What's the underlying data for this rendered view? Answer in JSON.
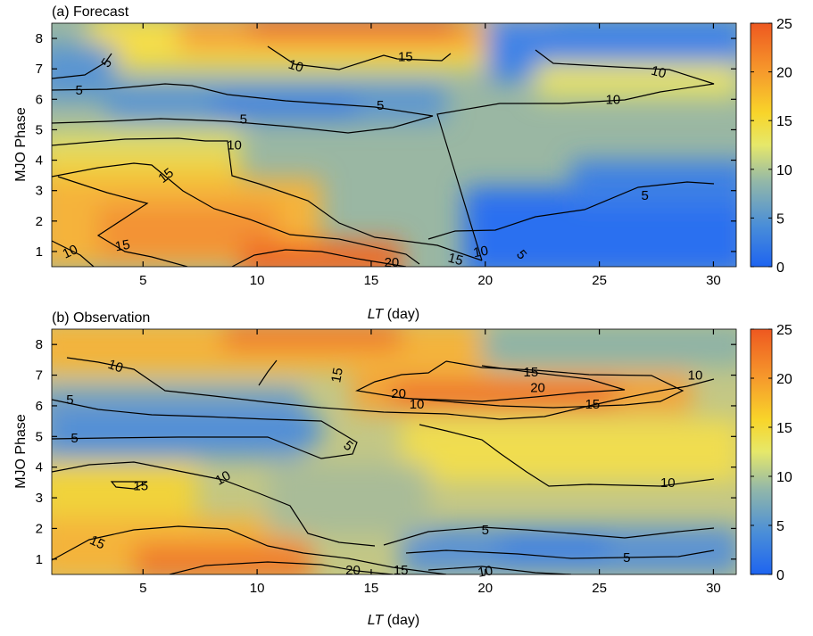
{
  "chart_data": [
    {
      "type": "heatmap",
      "panel": "a",
      "title": "(a) Forecast",
      "xlabel": "LT (day)",
      "xlabel_italic": "LT",
      "xlabel_rest": " (day)",
      "ylabel": "MJO Phase",
      "xlim": [
        1,
        31
      ],
      "ylim": [
        0.5,
        8.5
      ],
      "xticks": [
        5,
        10,
        15,
        20,
        25,
        30
      ],
      "yticks": [
        1,
        2,
        3,
        4,
        5,
        6,
        7,
        8
      ],
      "colorbar": {
        "min": 0,
        "max": 25,
        "ticks": [
          0,
          5,
          10,
          15,
          20,
          25
        ],
        "colors": [
          "#1e64f0",
          "#4a8ed8",
          "#93b8a8",
          "#e6e86a",
          "#f8d52a",
          "#f69a2c",
          "#ee5820"
        ]
      },
      "contour_levels": [
        5,
        10,
        15,
        20
      ],
      "field_description_rows": [
        {
          "phase": 8,
          "values_by_lt": [
            [
              1,
              9
            ],
            [
              5,
              12
            ],
            [
              10,
              18
            ],
            [
              12,
              23
            ],
            [
              15,
              22
            ],
            [
              18,
              15
            ],
            [
              20,
              10
            ],
            [
              25,
              6
            ],
            [
              30,
              4
            ]
          ]
        },
        {
          "phase": 7,
          "values_by_lt": [
            [
              1,
              6
            ],
            [
              5,
              7
            ],
            [
              10,
              11
            ],
            [
              15,
              14
            ],
            [
              20,
              10
            ],
            [
              25,
              11
            ],
            [
              30,
              11
            ]
          ]
        },
        {
          "phase": 6,
          "values_by_lt": [
            [
              1,
              5
            ],
            [
              5,
              6
            ],
            [
              10,
              7
            ],
            [
              15,
              6
            ],
            [
              20,
              8
            ],
            [
              25,
              9
            ],
            [
              30,
              10
            ]
          ]
        },
        {
          "phase": 5,
          "values_by_lt": [
            [
              1,
              5
            ],
            [
              5,
              4
            ],
            [
              10,
              4
            ],
            [
              15,
              6
            ],
            [
              20,
              8
            ],
            [
              25,
              7
            ],
            [
              30,
              6
            ]
          ]
        },
        {
          "phase": 4,
          "values_by_lt": [
            [
              1,
              11
            ],
            [
              5,
              12
            ],
            [
              10,
              9
            ],
            [
              15,
              9
            ],
            [
              20,
              8
            ],
            [
              25,
              7
            ],
            [
              30,
              6
            ]
          ]
        },
        {
          "phase": 3,
          "values_by_lt": [
            [
              1,
              14
            ],
            [
              5,
              16
            ],
            [
              10,
              12
            ],
            [
              15,
              9
            ],
            [
              20,
              8
            ],
            [
              25,
              6
            ],
            [
              30,
              4
            ]
          ]
        },
        {
          "phase": 2,
          "values_by_lt": [
            [
              1,
              15
            ],
            [
              5,
              17
            ],
            [
              10,
              15
            ],
            [
              15,
              11
            ],
            [
              20,
              6
            ],
            [
              25,
              3
            ],
            [
              30,
              3
            ]
          ]
        },
        {
          "phase": 1,
          "values_by_lt": [
            [
              1,
              11
            ],
            [
              5,
              15
            ],
            [
              10,
              18
            ],
            [
              15,
              21
            ],
            [
              20,
              9
            ],
            [
              25,
              2
            ],
            [
              30,
              2
            ]
          ]
        }
      ],
      "contour_labels": [
        {
          "text": "5",
          "lt": 3.4,
          "phase": 7.2,
          "rot": -55
        },
        {
          "text": "5",
          "lt": 2.2,
          "phase": 6.3,
          "rot": 0
        },
        {
          "text": "10",
          "lt": 11.7,
          "phase": 7.1,
          "rot": 18
        },
        {
          "text": "15",
          "lt": 16.5,
          "phase": 7.4,
          "rot": 0
        },
        {
          "text": "10",
          "lt": 27.6,
          "phase": 6.9,
          "rot": 15
        },
        {
          "text": "10",
          "lt": 25.6,
          "phase": 6.0,
          "rot": 0
        },
        {
          "text": "5",
          "lt": 15.4,
          "phase": 5.8,
          "rot": 0
        },
        {
          "text": "5",
          "lt": 9.4,
          "phase": 5.35,
          "rot": 0
        },
        {
          "text": "10",
          "lt": 9.0,
          "phase": 4.5,
          "rot": 0
        },
        {
          "text": "15",
          "lt": 6.0,
          "phase": 3.5,
          "rot": -38
        },
        {
          "text": "5",
          "lt": 27.0,
          "phase": 2.85,
          "rot": 0
        },
        {
          "text": "15",
          "lt": 4.1,
          "phase": 1.2,
          "rot": -10
        },
        {
          "text": "10",
          "lt": 1.8,
          "phase": 1.0,
          "rot": -25
        },
        {
          "text": "20",
          "lt": 15.9,
          "phase": 0.65,
          "rot": 0
        },
        {
          "text": "15",
          "lt": 18.7,
          "phase": 0.75,
          "rot": 15
        },
        {
          "text": "10",
          "lt": 19.8,
          "phase": 1.0,
          "rot": -10
        },
        {
          "text": "5",
          "lt": 21.6,
          "phase": 0.9,
          "rot": 50
        }
      ]
    },
    {
      "type": "heatmap",
      "panel": "b",
      "title": "(b) Observation",
      "xlabel": "LT (day)",
      "xlabel_italic": "LT",
      "xlabel_rest": " (day)",
      "ylabel": "MJO Phase",
      "xlim": [
        1,
        31
      ],
      "ylim": [
        0.5,
        8.5
      ],
      "xticks": [
        5,
        10,
        15,
        20,
        25,
        30
      ],
      "yticks": [
        1,
        2,
        3,
        4,
        5,
        6,
        7,
        8
      ],
      "colorbar": {
        "min": 0,
        "max": 25,
        "ticks": [
          0,
          5,
          10,
          15,
          20,
          25
        ],
        "colors": [
          "#1e64f0",
          "#4a8ed8",
          "#93b8a8",
          "#e6e86a",
          "#f8d52a",
          "#f69a2c",
          "#ee5820"
        ]
      },
      "contour_levels": [
        5,
        10,
        15,
        20
      ],
      "field_description_rows": [
        {
          "phase": 8,
          "values_by_lt": [
            [
              1,
              18
            ],
            [
              5,
              19
            ],
            [
              10,
              21
            ],
            [
              13,
              22
            ],
            [
              16,
              18
            ],
            [
              20,
              12
            ],
            [
              25,
              9
            ],
            [
              30,
              8
            ]
          ]
        },
        {
          "phase": 7,
          "values_by_lt": [
            [
              1,
              12
            ],
            [
              5,
              10
            ],
            [
              10,
              12
            ],
            [
              15,
              13
            ],
            [
              20,
              20
            ],
            [
              25,
              17
            ],
            [
              30,
              10
            ]
          ]
        },
        {
          "phase": 6,
          "values_by_lt": [
            [
              1,
              6
            ],
            [
              5,
              7
            ],
            [
              10,
              8
            ],
            [
              15,
              11
            ],
            [
              20,
              18
            ],
            [
              25,
              17
            ],
            [
              30,
              12
            ]
          ]
        },
        {
          "phase": 5,
          "values_by_lt": [
            [
              1,
              4
            ],
            [
              5,
              5
            ],
            [
              10,
              5
            ],
            [
              15,
              7
            ],
            [
              20,
              12
            ],
            [
              25,
              14
            ],
            [
              30,
              12
            ]
          ]
        },
        {
          "phase": 4,
          "values_by_lt": [
            [
              1,
              6
            ],
            [
              5,
              8
            ],
            [
              10,
              10
            ],
            [
              15,
              9
            ],
            [
              20,
              10
            ],
            [
              25,
              12
            ],
            [
              30,
              10
            ]
          ]
        },
        {
          "phase": 3,
          "values_by_lt": [
            [
              1,
              13
            ],
            [
              5,
              15
            ],
            [
              10,
              10
            ],
            [
              15,
              8
            ],
            [
              20,
              8
            ],
            [
              25,
              9
            ],
            [
              30,
              8
            ]
          ]
        },
        {
          "phase": 2,
          "values_by_lt": [
            [
              1,
              14
            ],
            [
              5,
              15
            ],
            [
              10,
              17
            ],
            [
              15,
              10
            ],
            [
              20,
              5
            ],
            [
              25,
              5
            ],
            [
              30,
              7
            ]
          ]
        },
        {
          "phase": 1,
          "values_by_lt": [
            [
              1,
              17
            ],
            [
              5,
              19
            ],
            [
              10,
              22
            ],
            [
              15,
              16
            ],
            [
              20,
              10
            ],
            [
              25,
              6
            ],
            [
              30,
              6
            ]
          ]
        }
      ],
      "contour_labels": [
        {
          "text": "10",
          "lt": 3.8,
          "phase": 7.3,
          "rot": 20
        },
        {
          "text": "5",
          "lt": 1.8,
          "phase": 6.2,
          "rot": 0
        },
        {
          "text": "15",
          "lt": 13.5,
          "phase": 7.0,
          "rot": -80
        },
        {
          "text": "15",
          "lt": 22.0,
          "phase": 7.1,
          "rot": 0
        },
        {
          "text": "20",
          "lt": 22.3,
          "phase": 6.6,
          "rot": 0
        },
        {
          "text": "10",
          "lt": 29.2,
          "phase": 7.0,
          "rot": 0
        },
        {
          "text": "20",
          "lt": 16.2,
          "phase": 6.4,
          "rot": 0
        },
        {
          "text": "10",
          "lt": 17.0,
          "phase": 6.05,
          "rot": 0
        },
        {
          "text": "15",
          "lt": 24.7,
          "phase": 6.05,
          "rot": 0
        },
        {
          "text": "5",
          "lt": 2.0,
          "phase": 4.95,
          "rot": 0
        },
        {
          "text": "5",
          "lt": 14.0,
          "phase": 4.7,
          "rot": 40
        },
        {
          "text": "15",
          "lt": 4.9,
          "phase": 3.4,
          "rot": 0
        },
        {
          "text": "10",
          "lt": 8.5,
          "phase": 3.65,
          "rot": -30
        },
        {
          "text": "10",
          "lt": 28.0,
          "phase": 3.5,
          "rot": 0
        },
        {
          "text": "5",
          "lt": 20.0,
          "phase": 1.95,
          "rot": 0
        },
        {
          "text": "15",
          "lt": 3.0,
          "phase": 1.55,
          "rot": 25
        },
        {
          "text": "5",
          "lt": 26.2,
          "phase": 1.05,
          "rot": 0
        },
        {
          "text": "20",
          "lt": 14.2,
          "phase": 0.65,
          "rot": 0
        },
        {
          "text": "15",
          "lt": 16.3,
          "phase": 0.65,
          "rot": 0
        },
        {
          "text": "10",
          "lt": 20.0,
          "phase": 0.6,
          "rot": -10
        }
      ]
    }
  ]
}
